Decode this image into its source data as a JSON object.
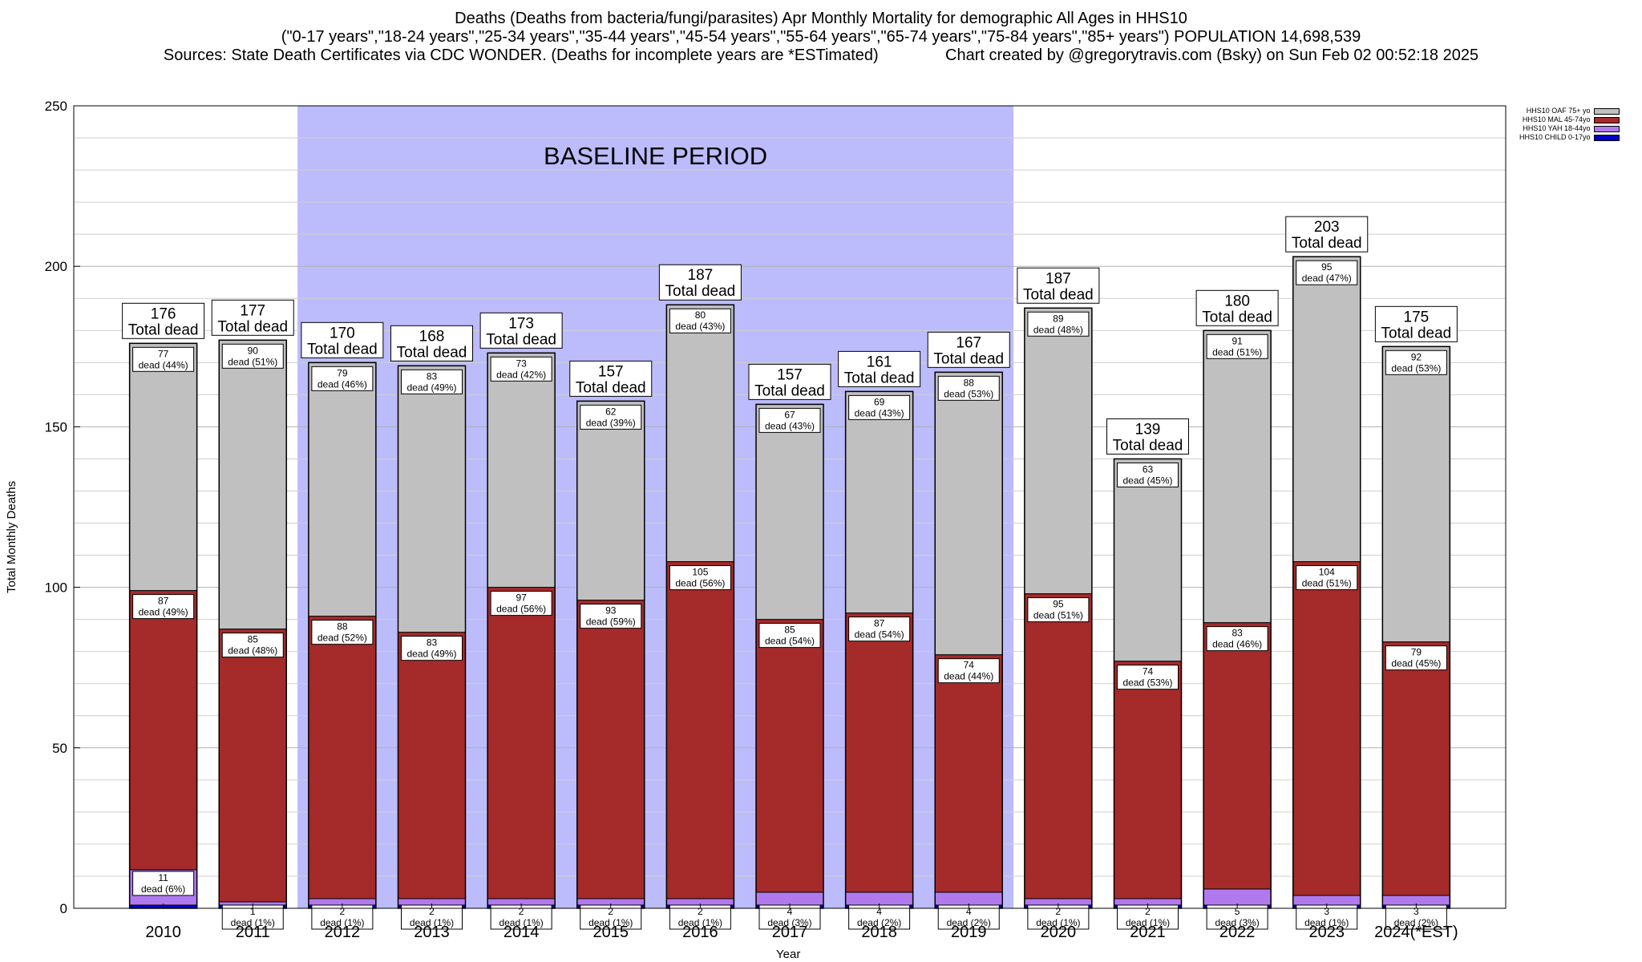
{
  "title_lines": [
    "Deaths (Deaths from bacteria/fungi/parasites) Apr Monthly Mortality for demographic All Ages in HHS10",
    "(\"0-17 years\",\"18-24 years\",\"25-34 years\",\"35-44 years\",\"45-54 years\",\"55-64 years\",\"65-74 years\",\"75-84 years\",\"85+ years\") POPULATION 14,698,539",
    "Sources: State Death Certificates via CDC WONDER. (Deaths for incomplete years are *ESTimated)               Chart created by @gregorytravis.com (Bsky) on Sun Feb 02 00:52:18 2025"
  ],
  "chart_data": {
    "type": "bar",
    "stacked": true,
    "xlabel": "Year",
    "ylabel": "Total Monthly Deaths",
    "ylim": [
      0,
      250
    ],
    "yticks": [
      0,
      50,
      100,
      150,
      200,
      250
    ],
    "grid": true,
    "legend_position": "top-right",
    "annotation": {
      "text": "BASELINE PERIOD",
      "from_category": "2012",
      "to_category": "2019",
      "color": "#bcbcfc"
    },
    "total_suffix": "Total dead",
    "segment_suffix": "dead",
    "categories": [
      "2010",
      "2011",
      "2012",
      "2013",
      "2014",
      "2015",
      "2016",
      "2017",
      "2018",
      "2019",
      "2020",
      "2021",
      "2022",
      "2023",
      "2024(*EST)"
    ],
    "totals": [
      176,
      177,
      170,
      168,
      173,
      157,
      187,
      157,
      161,
      167,
      187,
      139,
      180,
      203,
      175
    ],
    "series": [
      {
        "name": "HHS10 CHILD 0-17yo",
        "color": "#0000c8",
        "values": [
          1,
          1,
          1,
          1,
          1,
          1,
          1,
          1,
          1,
          1,
          1,
          1,
          1,
          1,
          1
        ],
        "labels": [
          null,
          null,
          null,
          null,
          null,
          null,
          null,
          null,
          null,
          null,
          null,
          null,
          null,
          null,
          null
        ],
        "percents": [
          null,
          null,
          null,
          null,
          null,
          null,
          null,
          null,
          null,
          null,
          null,
          null,
          null,
          null,
          null
        ]
      },
      {
        "name": "HHS10 YAH 18-44yo",
        "color": "#b07aee",
        "values": [
          11,
          1,
          2,
          2,
          2,
          2,
          2,
          4,
          4,
          4,
          2,
          2,
          5,
          3,
          3
        ],
        "labels": [
          11,
          1,
          2,
          2,
          2,
          2,
          2,
          4,
          4,
          4,
          2,
          2,
          5,
          3,
          3
        ],
        "percents": [
          "6%",
          "1%",
          "1%",
          "1%",
          "1%",
          "1%",
          "1%",
          "3%",
          "2%",
          "2%",
          "1%",
          "1%",
          "3%",
          "1%",
          "2%"
        ]
      },
      {
        "name": "HHS10 MAL 45-74yo",
        "color": "#a52a2a",
        "values": [
          87,
          85,
          88,
          83,
          97,
          93,
          105,
          85,
          87,
          74,
          95,
          74,
          83,
          104,
          79
        ],
        "labels": [
          87,
          85,
          88,
          83,
          97,
          93,
          105,
          85,
          87,
          74,
          95,
          74,
          83,
          104,
          79
        ],
        "percents": [
          "49%",
          "48%",
          "52%",
          "49%",
          "56%",
          "59%",
          "56%",
          "54%",
          "54%",
          "44%",
          "51%",
          "53%",
          "46%",
          "51%",
          "45%"
        ]
      },
      {
        "name": "HHS10 OAF 75+ yo",
        "color": "#c0c0c0",
        "values": [
          77,
          90,
          79,
          83,
          73,
          62,
          80,
          67,
          69,
          88,
          89,
          63,
          91,
          95,
          92
        ],
        "labels": [
          77,
          90,
          79,
          83,
          73,
          62,
          80,
          67,
          69,
          88,
          89,
          63,
          91,
          95,
          92
        ],
        "percents": [
          "44%",
          "51%",
          "46%",
          "49%",
          "42%",
          "39%",
          "43%",
          "43%",
          "43%",
          "53%",
          "48%",
          "45%",
          "51%",
          "47%",
          "53%"
        ]
      }
    ]
  }
}
